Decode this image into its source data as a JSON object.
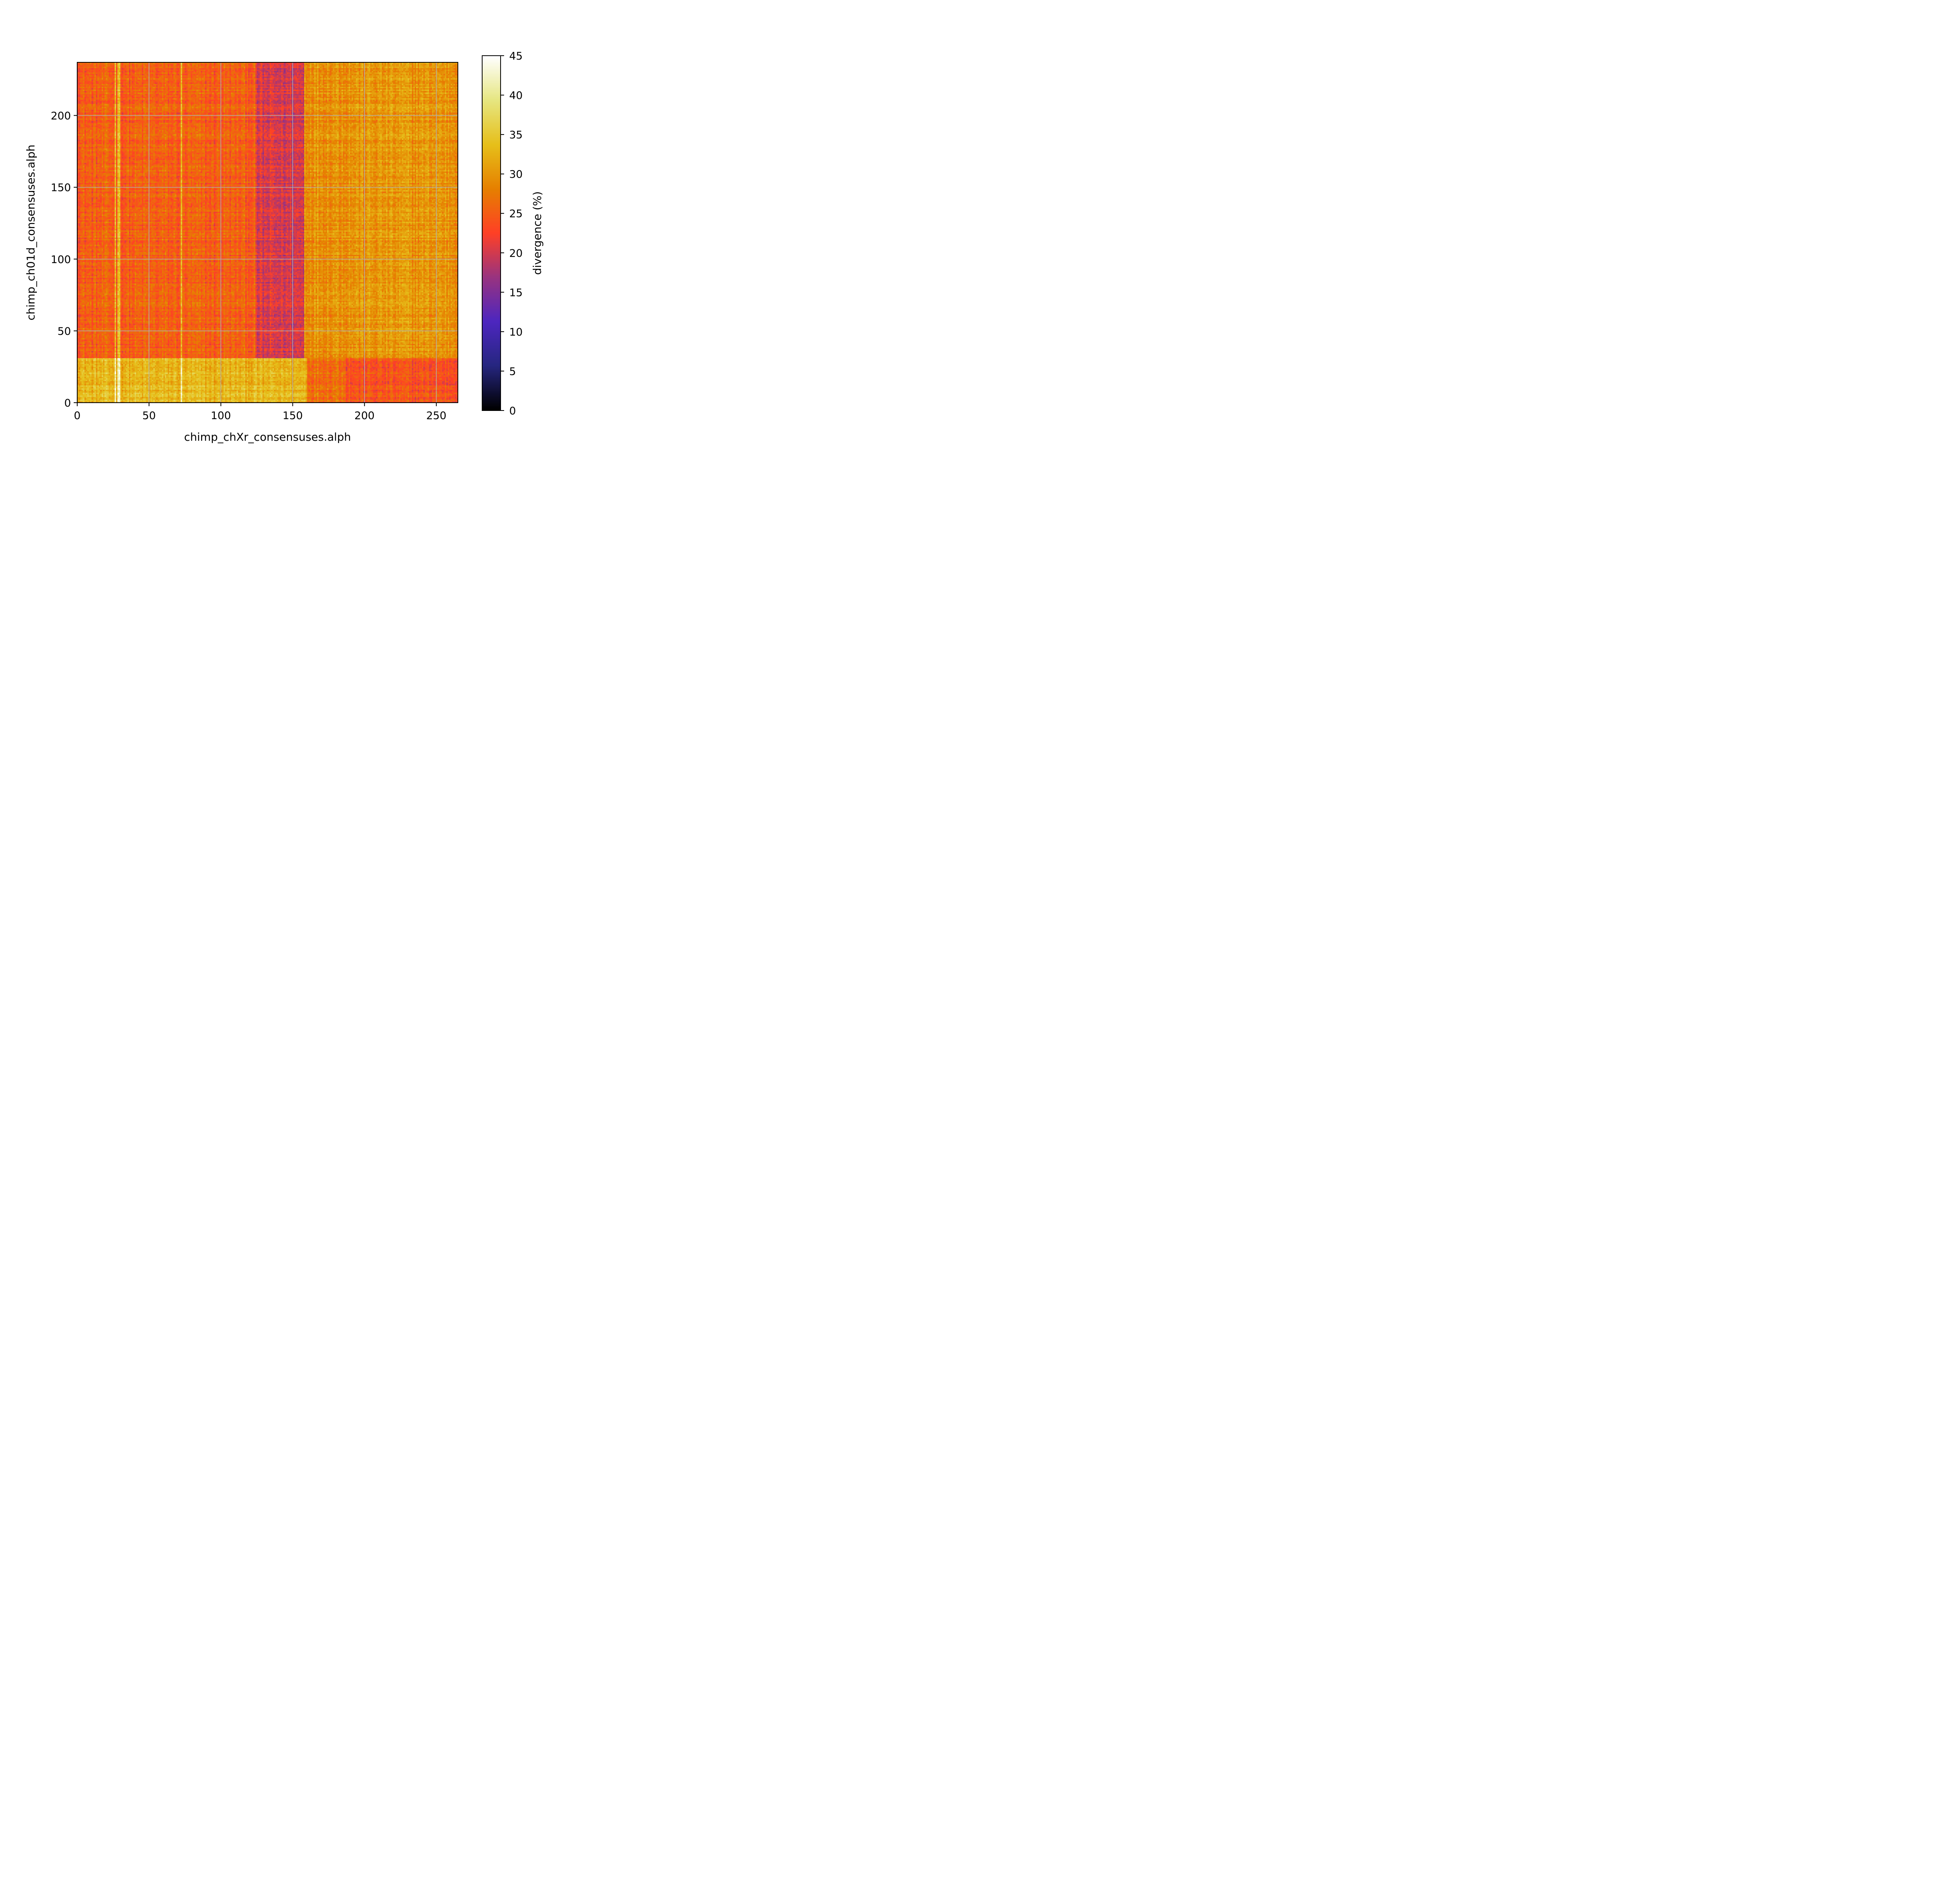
{
  "chart_data": {
    "type": "heatmap",
    "xlabel": "chimp_chXr_consensuses.alph",
    "ylabel": "chimp_ch01d_consensuses.alph",
    "colorbar_label": "divergence (%)",
    "xlim": [
      0,
      265
    ],
    "ylim": [
      0,
      237
    ],
    "x_ticks": [
      0,
      50,
      100,
      150,
      200,
      250
    ],
    "y_ticks": [
      0,
      50,
      100,
      150,
      200
    ],
    "colorbar_range": [
      0,
      45
    ],
    "colorbar_ticks": [
      0,
      5,
      10,
      15,
      20,
      25,
      30,
      35,
      40,
      45
    ],
    "colormap": "CMRmap",
    "grid": true,
    "grid_color": "#b0b0b0",
    "n_cols": 265,
    "n_rows": 237,
    "regions": [
      {
        "x_range": [
          0,
          160
        ],
        "y_range": [
          0,
          31
        ],
        "mean_divergence": 33
      },
      {
        "x_range": [
          160,
          187
        ],
        "y_range": [
          0,
          31
        ],
        "mean_divergence": 27
      },
      {
        "x_range": [
          187,
          265
        ],
        "y_range": [
          0,
          31
        ],
        "mean_divergence": 24
      },
      {
        "x_range": [
          0,
          124
        ],
        "y_range": [
          31,
          237
        ],
        "mean_divergence": 25
      },
      {
        "x_range": [
          124,
          158
        ],
        "y_range": [
          31,
          237
        ],
        "mean_divergence": 20
      },
      {
        "x_range": [
          158,
          265
        ],
        "y_range": [
          31,
          237
        ],
        "mean_divergence": 30
      }
    ],
    "high_divergence_columns": [
      26,
      28,
      29,
      72
    ]
  }
}
